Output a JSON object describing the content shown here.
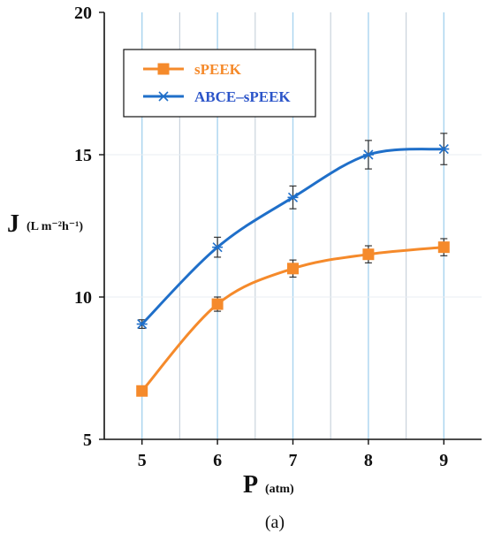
{
  "chart_data": {
    "type": "line",
    "x": [
      5,
      6,
      7,
      8,
      9
    ],
    "xlim": [
      4.5,
      9.5
    ],
    "ylim": [
      5,
      20
    ],
    "xticks": [
      "5",
      "6",
      "7",
      "8",
      "9"
    ],
    "yticks": [
      "5",
      "10",
      "15",
      "20"
    ],
    "xlabel": "P",
    "xlabel_unit": "(atm)",
    "ylabel": "J",
    "ylabel_unit": "(L m⁻²h⁻¹)",
    "caption": "(a)",
    "grid": "vertical",
    "legend": "top-left",
    "series": [
      {
        "name": "sPEEK",
        "color": "#f58a2b",
        "marker": "square",
        "values": [
          6.7,
          9.75,
          11.0,
          11.5,
          11.75
        ],
        "errors": [
          0.0,
          0.25,
          0.3,
          0.3,
          0.3
        ]
      },
      {
        "name": "ABCE–sPEEK",
        "color": "#1f6fc9",
        "marker": "x",
        "values": [
          9.05,
          11.75,
          13.5,
          15.0,
          15.2
        ],
        "errors": [
          0.15,
          0.35,
          0.4,
          0.5,
          0.55
        ]
      }
    ]
  }
}
